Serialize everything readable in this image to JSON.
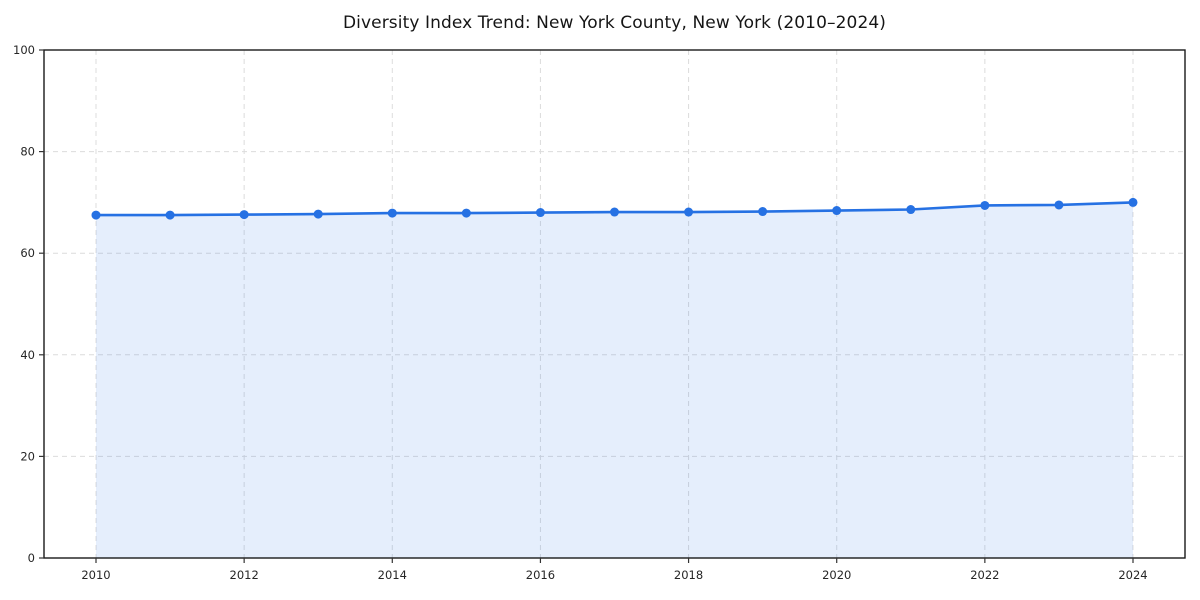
{
  "figure": {
    "background": "#ffffff"
  },
  "chart_data": {
    "type": "area",
    "title": "Diversity Index Trend: New York County, New York (2010–2024)",
    "xlabel": "",
    "ylabel": "",
    "x": [
      2010,
      2011,
      2012,
      2013,
      2014,
      2015,
      2016,
      2017,
      2018,
      2019,
      2020,
      2021,
      2022,
      2023,
      2024
    ],
    "series": [
      {
        "name": "Diversity Index",
        "values": [
          67.5,
          67.5,
          67.6,
          67.7,
          67.9,
          67.9,
          68.0,
          68.1,
          68.1,
          68.2,
          68.4,
          68.6,
          69.4,
          69.5,
          70.0
        ]
      }
    ],
    "xlim": [
      2009.3,
      2024.7
    ],
    "ylim": [
      0,
      100
    ],
    "yticks": [
      0,
      20,
      40,
      60,
      80,
      100
    ],
    "xticks": [
      2010,
      2012,
      2014,
      2016,
      2018,
      2020,
      2022,
      2024
    ],
    "grid": true,
    "grid_style": "dashed",
    "legend": "none",
    "colors": {
      "line": "#2671e3",
      "marker": "#2671e3",
      "fill": "rgba(38,113,227,0.12)",
      "grid": "#dcdcdc",
      "spine": "#1a1a1a",
      "tick": "#333333",
      "tick_label": "#262626",
      "title": "#151515"
    }
  }
}
